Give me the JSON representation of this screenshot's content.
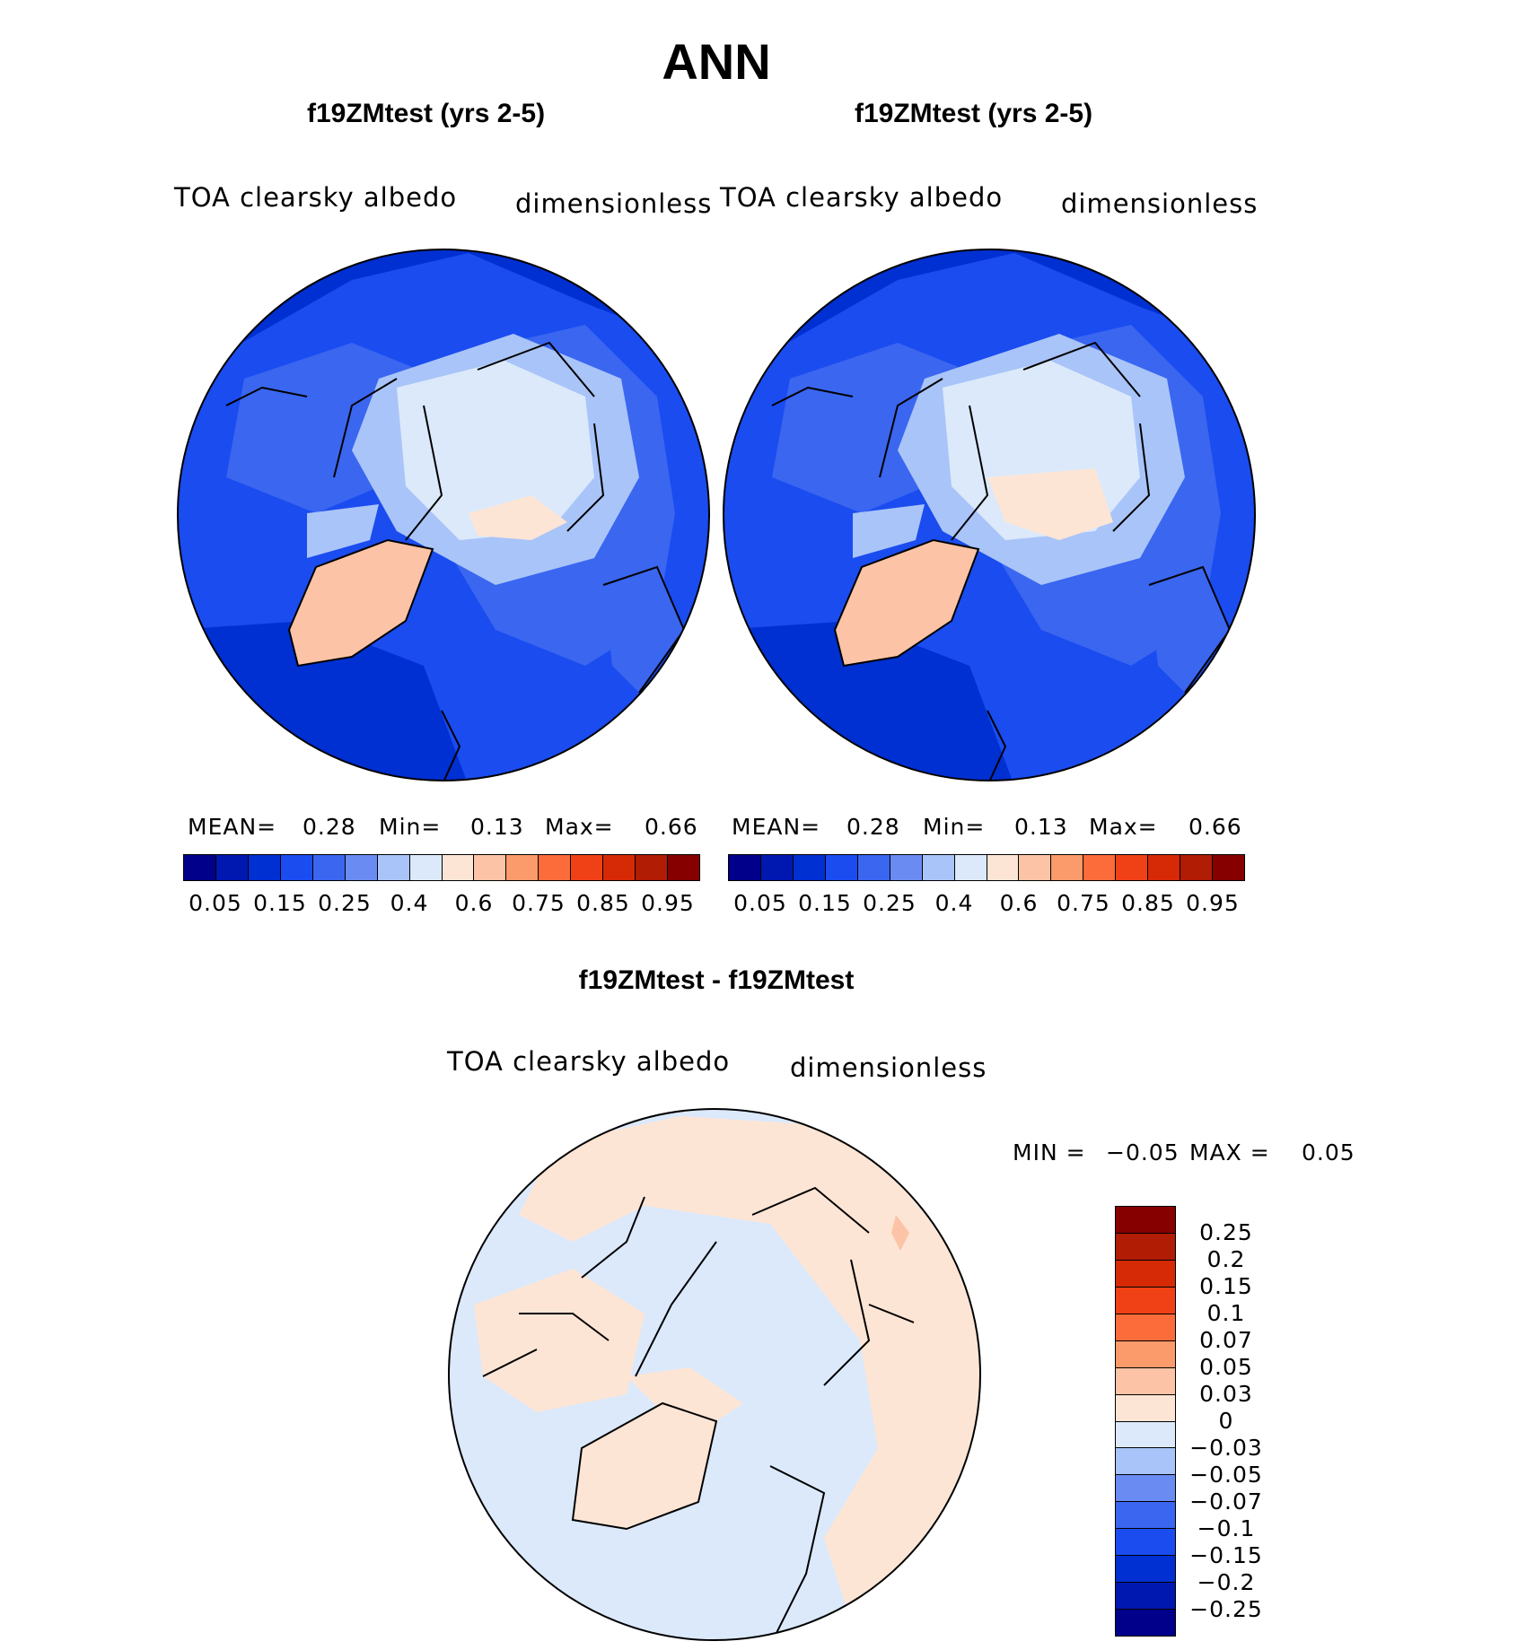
{
  "page_title": "ANN",
  "panels": [
    {
      "title": "f19ZMtest (yrs 2-5)",
      "variable": "TOA clearsky albedo",
      "units": "dimensionless",
      "stats": {
        "mean_label": "MEAN=",
        "mean": "0.28",
        "min_label": "Min=",
        "min": "0.13",
        "max_label": "Max=",
        "max": "0.66"
      }
    },
    {
      "title": "f19ZMtest (yrs 2-5)",
      "variable": "TOA clearsky albedo",
      "units": "dimensionless",
      "stats": {
        "mean_label": "MEAN=",
        "mean": "0.28",
        "min_label": "Min=",
        "min": "0.13",
        "max_label": "Max=",
        "max": "0.66"
      }
    }
  ],
  "abs_colorbar": {
    "labels": [
      "0.05",
      "0.15",
      "0.25",
      "0.4",
      "0.6",
      "0.75",
      "0.85",
      "0.95"
    ],
    "colors": [
      "#00008a",
      "#0018b0",
      "#0030d2",
      "#1a4cf0",
      "#3a66f0",
      "#6a8cf2",
      "#a9c4f8",
      "#dbe9fb",
      "#fde5d5",
      "#fcc3a6",
      "#fb9a6a",
      "#fb6c3a",
      "#f04015",
      "#d62a06",
      "#b01c04",
      "#860000"
    ]
  },
  "diff_panel": {
    "title": "f19ZMtest - f19ZMtest",
    "variable": "TOA clearsky albedo",
    "units": "dimensionless",
    "min_label": "MIN =",
    "min": "−0.05",
    "max_label": "MAX =",
    "max": "0.05"
  },
  "diff_colorbar": {
    "labels": [
      "0.25",
      "0.2",
      "0.15",
      "0.1",
      "0.07",
      "0.05",
      "0.03",
      "0",
      "−0.03",
      "−0.05",
      "−0.07",
      "−0.1",
      "−0.15",
      "−0.2",
      "−0.25"
    ],
    "colors": [
      "#860000",
      "#b01c04",
      "#d62a06",
      "#f04015",
      "#fb6c3a",
      "#fb9a6a",
      "#fcc3a6",
      "#fde5d5",
      "#dbe9fb",
      "#a9c4f8",
      "#6a8cf2",
      "#3a66f0",
      "#1a4cf0",
      "#0030d2",
      "#0018b0",
      "#00008a"
    ]
  }
}
